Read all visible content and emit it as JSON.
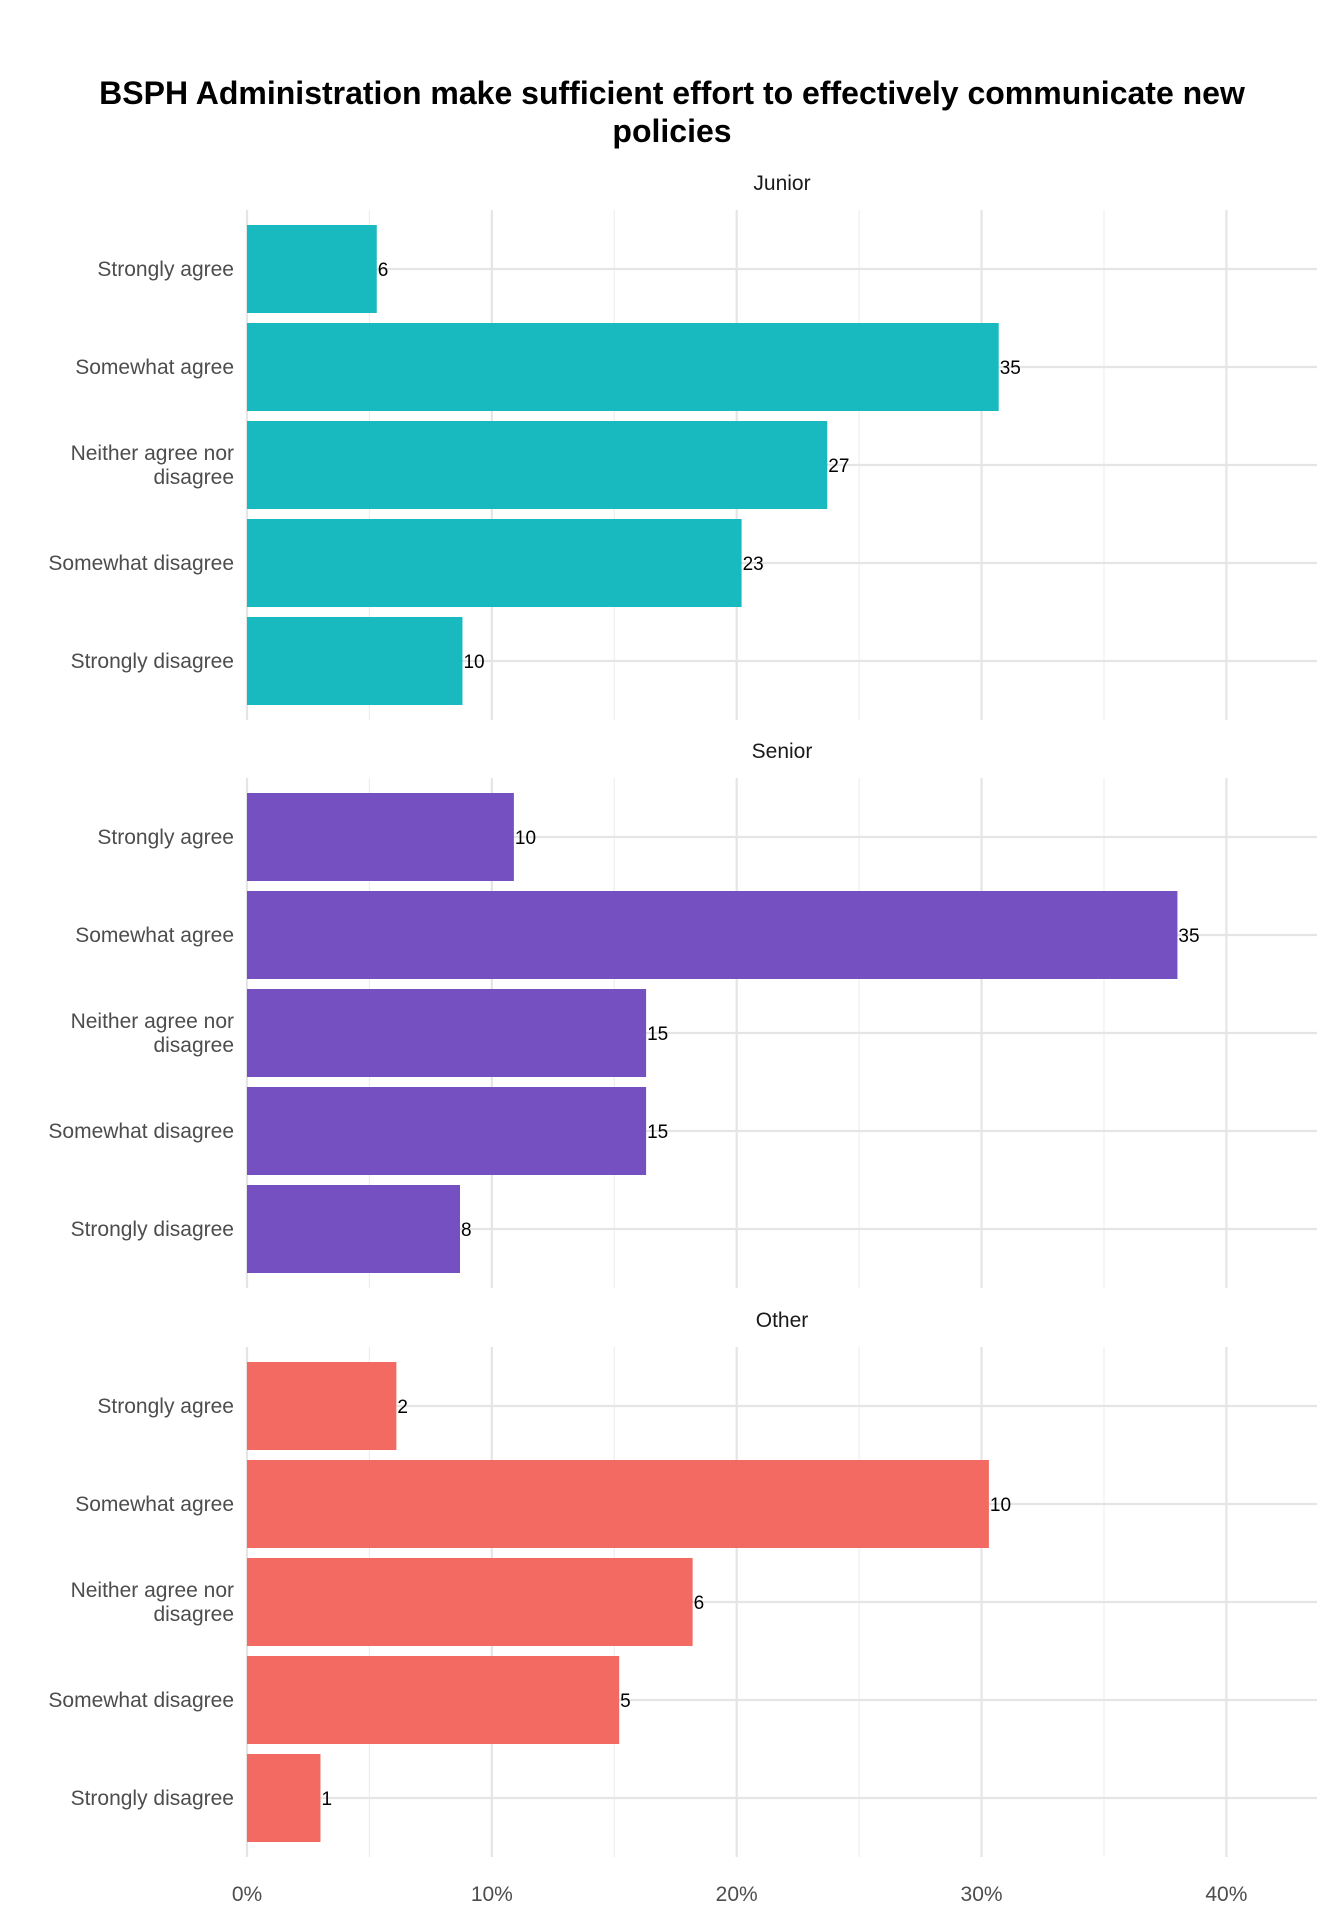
{
  "chart_data": {
    "type": "bar",
    "orientation": "horizontal",
    "title": "BSPH Administration make sufficient effort to effectively communicate new policies",
    "title_lines": [
      "BSPH Administration make sufficient effort to effectively communicate new",
      "policies"
    ],
    "categories": [
      "Strongly agree",
      "Somewhat agree",
      "Neither agree nor disagree",
      "Somewhat disagree",
      "Strongly disagree"
    ],
    "category_label_lines": [
      [
        "Strongly agree"
      ],
      [
        "Somewhat agree"
      ],
      [
        "Neither agree nor",
        "disagree"
      ],
      [
        "Somewhat disagree"
      ],
      [
        "Strongly disagree"
      ]
    ],
    "x_axis": {
      "ticks": [
        0,
        10,
        20,
        30,
        40
      ],
      "tick_labels": [
        "0%",
        "10%",
        "20%",
        "30%",
        "40%"
      ],
      "xlim": [
        0,
        43.7
      ],
      "grid": true
    },
    "facets": [
      {
        "name": "Junior",
        "color": "#19B9C0",
        "counts": [
          6,
          35,
          27,
          23,
          10
        ],
        "percents": [
          5.3,
          30.7,
          23.7,
          20.2,
          8.8
        ]
      },
      {
        "name": "Senior",
        "color": "#7550C1",
        "counts": [
          10,
          35,
          15,
          15,
          8
        ],
        "percents": [
          10.9,
          38.0,
          16.3,
          16.3,
          8.7
        ]
      },
      {
        "name": "Other",
        "color": "#F26A61",
        "counts": [
          2,
          10,
          6,
          5,
          1
        ],
        "percents": [
          6.1,
          30.3,
          18.2,
          15.2,
          3.0
        ]
      }
    ]
  }
}
